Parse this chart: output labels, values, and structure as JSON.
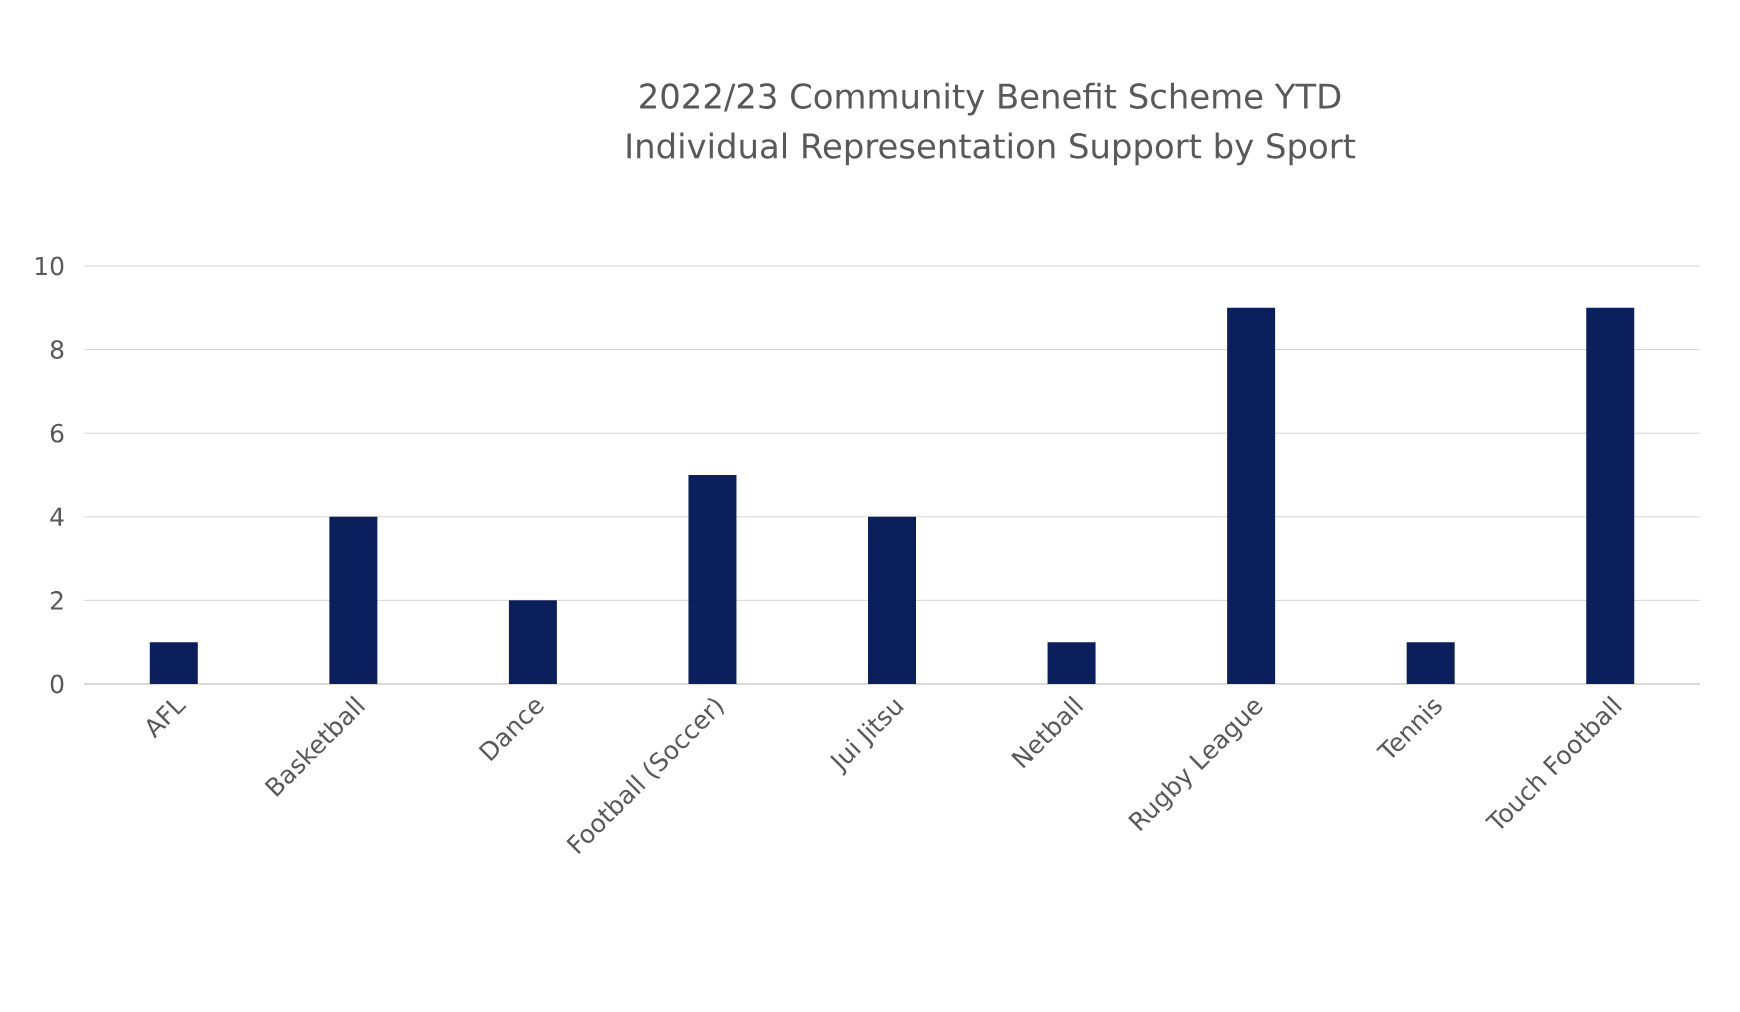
{
  "chart_data": {
    "type": "bar",
    "title": "2022/23 Community Benefit Scheme YTD\nIndividual Representation Support by Sport",
    "categories": [
      "AFL",
      "Basketball",
      "Dance",
      "Football (Soccer)",
      "Jui Jitsu",
      "Netball",
      "Rugby League",
      "Tennis",
      "Touch Football"
    ],
    "values": [
      1,
      4,
      2,
      5,
      4,
      1,
      9,
      1,
      9
    ],
    "color": "#0b1f5c",
    "ylim": [
      0,
      10
    ],
    "yticks": [
      0,
      2,
      4,
      6,
      8,
      10
    ],
    "grid": "y"
  }
}
